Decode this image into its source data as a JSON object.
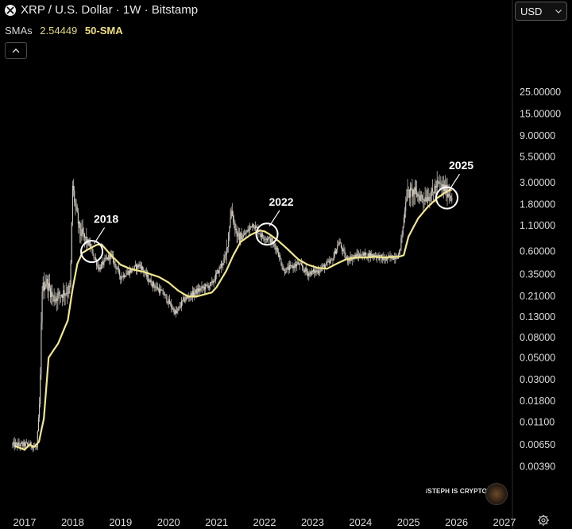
{
  "header": {
    "title": "XRP / U.S. Dollar · 1W · Bitstamp",
    "sma_label": "SMAs",
    "sma_value": "2.54449",
    "sma_name": "50-SMA",
    "currency": "USD",
    "collapse_icon": "chevron-up-icon",
    "symbol_icon": "xrp-logo-icon",
    "settings_icon": "gear-icon"
  },
  "watermark": {
    "text": "/STEPH IS CRYPTO"
  },
  "colors": {
    "background": "#000000",
    "candles": "#d9d3c8",
    "sma": "#f2e68c",
    "annotation": "#ffffff"
  },
  "chart_data": {
    "type": "line",
    "scale": "log",
    "x": [
      2016.8,
      2017.0,
      2017.1,
      2017.2,
      2017.3,
      2017.4,
      2017.5,
      2017.7,
      2017.9,
      2018.0,
      2018.1,
      2018.2,
      2018.3,
      2018.4,
      2018.5,
      2018.6,
      2018.8,
      2019.0,
      2019.2,
      2019.5,
      2019.8,
      2020.0,
      2020.2,
      2020.4,
      2020.6,
      2020.9,
      2021.0,
      2021.2,
      2021.35,
      2021.5,
      2021.7,
      2021.9,
      2022.0,
      2022.1,
      2022.3,
      2022.5,
      2022.7,
      2022.9,
      2023.1,
      2023.3,
      2023.5,
      2023.7,
      2023.9,
      2024.1,
      2024.3,
      2024.5,
      2024.7,
      2024.8,
      2024.9,
      2025.0,
      2025.2,
      2025.4,
      2025.6,
      2025.8,
      2025.9
    ],
    "series": [
      {
        "name": "50-SMA",
        "values": [
          0.0063,
          0.0058,
          0.0065,
          0.0062,
          0.007,
          0.012,
          0.05,
          0.07,
          0.12,
          0.25,
          0.45,
          0.58,
          0.62,
          0.66,
          0.7,
          0.71,
          0.55,
          0.44,
          0.4,
          0.37,
          0.33,
          0.29,
          0.24,
          0.21,
          0.21,
          0.23,
          0.26,
          0.38,
          0.55,
          0.75,
          0.88,
          0.98,
          0.96,
          0.9,
          0.76,
          0.62,
          0.5,
          0.44,
          0.41,
          0.4,
          0.45,
          0.5,
          0.52,
          0.52,
          0.53,
          0.52,
          0.53,
          0.53,
          0.55,
          0.85,
          1.3,
          1.7,
          2.1,
          2.45,
          2.54
        ]
      }
    ],
    "price_range": [
      0.0025,
      4.5
    ],
    "annotations": [
      {
        "label": "2018",
        "x": 2018.4,
        "y": 0.6
      },
      {
        "label": "2022",
        "x": 2022.05,
        "y": 0.9
      },
      {
        "label": "2025",
        "x": 2025.8,
        "y": 2.1
      }
    ],
    "x_ticks": [
      "2017",
      "2018",
      "2019",
      "2020",
      "2021",
      "2022",
      "2023",
      "2024",
      "2025",
      "2026",
      "2027"
    ],
    "y_ticks": [
      "25.00000",
      "15.00000",
      "9.00000",
      "5.50000",
      "3.00000",
      "1.80000",
      "1.10000",
      "0.60000",
      "0.35000",
      "0.21000",
      "0.13000",
      "0.08000",
      "0.05000",
      "0.03000",
      "0.01800",
      "0.01100",
      "0.00650",
      "0.00390"
    ],
    "grid": false,
    "legend": "top-left"
  }
}
